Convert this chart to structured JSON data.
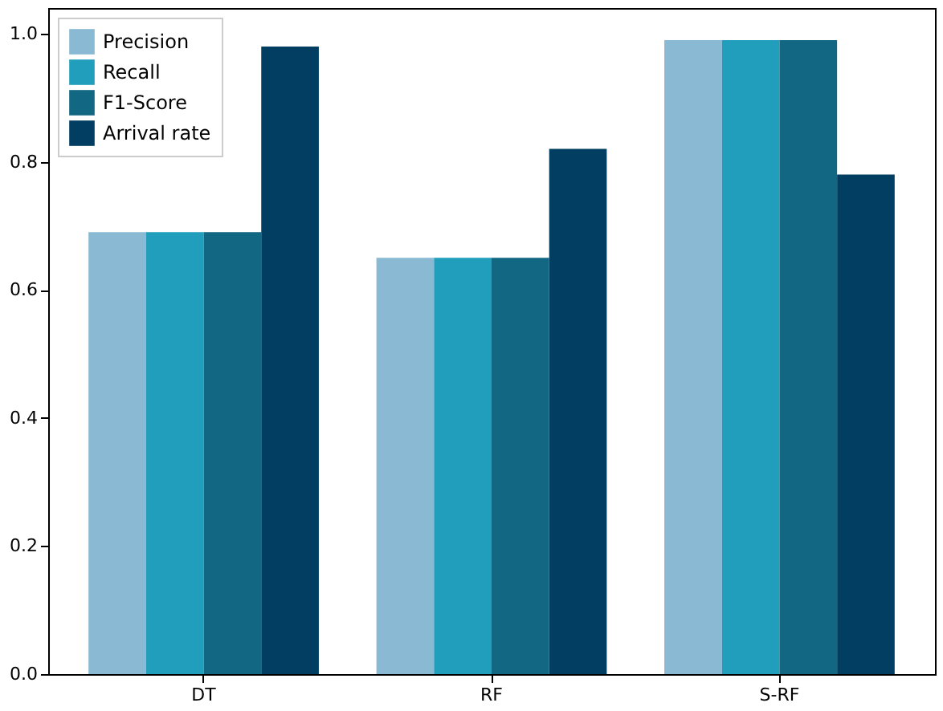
{
  "chart_data": {
    "type": "bar",
    "categories": [
      "DT",
      "RF",
      "S-RF"
    ],
    "series": [
      {
        "name": "Precision",
        "color": "#8ab9d3",
        "values": [
          0.69,
          0.65,
          0.99
        ]
      },
      {
        "name": "Recall",
        "color": "#219ebc",
        "values": [
          0.69,
          0.65,
          0.99
        ]
      },
      {
        "name": "F1-Score",
        "color": "#126782",
        "values": [
          0.69,
          0.65,
          0.99
        ]
      },
      {
        "name": "Arrival rate",
        "color": "#023e62",
        "values": [
          0.98,
          0.82,
          0.78
        ]
      }
    ],
    "ylim": [
      0,
      1.04
    ],
    "yticks": [
      {
        "value": 0,
        "label": "0.0"
      },
      {
        "value": 0.2,
        "label": "0.2"
      },
      {
        "value": 0.4,
        "label": "0.4"
      },
      {
        "value": 0.6,
        "label": "0.6"
      },
      {
        "value": 0.8,
        "label": "0.8"
      },
      {
        "value": 1.0,
        "label": "1.0"
      }
    ],
    "grid": false,
    "legend": "top left"
  }
}
